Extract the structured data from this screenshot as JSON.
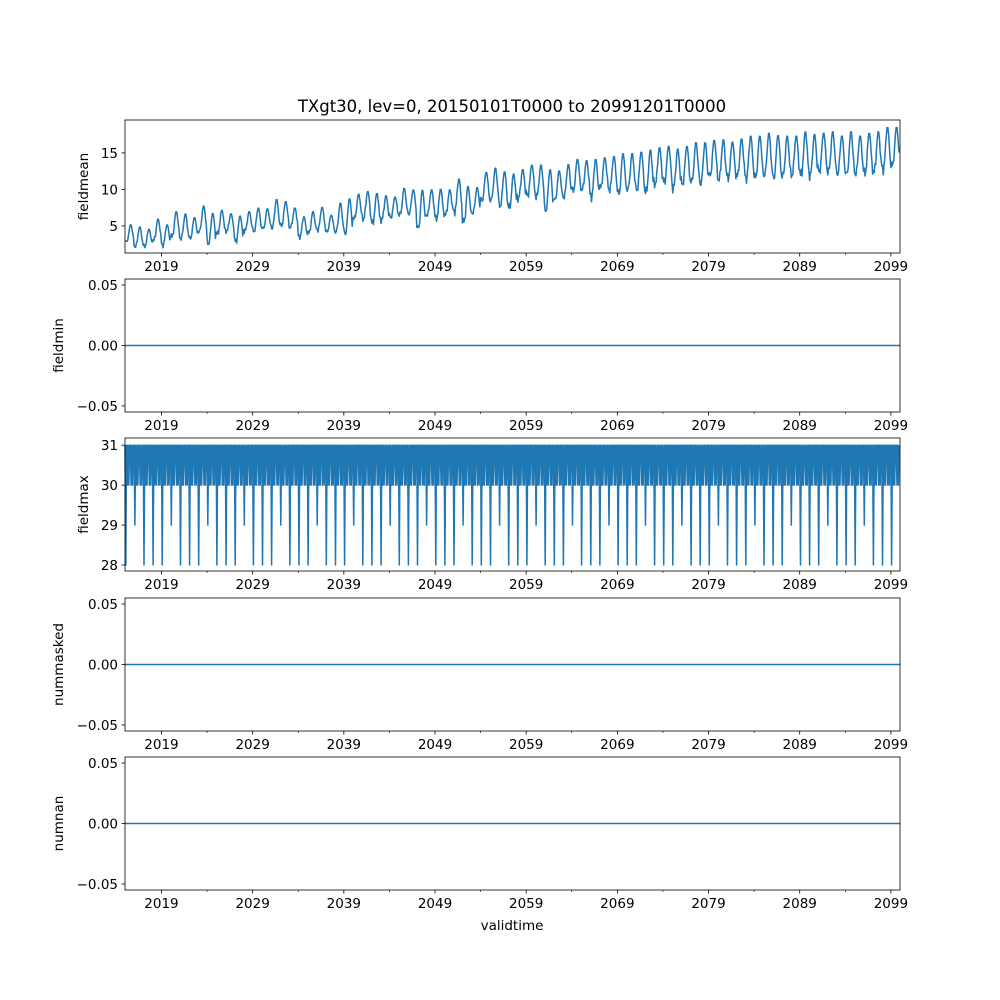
{
  "chart_data": {
    "type": "line",
    "title": "TXgt30, lev=0, 20150101T0000 to 20991201T0000",
    "xlabel": "validtime",
    "x_start": "2015-01",
    "x_end": "2099-12",
    "x_frequency": "monthly",
    "x_ticks": [
      "2019",
      "2029",
      "2039",
      "2049",
      "2059",
      "2069",
      "2079",
      "2089",
      "2099"
    ],
    "x_minor_ticks": [
      2024,
      2034,
      2044,
      2054,
      2064,
      2074,
      2084,
      2094
    ],
    "xlim": [
      2015.0,
      2100.0
    ],
    "series_color": "#1f77b4",
    "panels": [
      {
        "ylabel": "fieldmean",
        "ylim": [
          1.3,
          19.5
        ],
        "y_ticks": [
          {
            "v": 5,
            "label": "5"
          },
          {
            "v": 10,
            "label": "10"
          },
          {
            "v": 15,
            "label": "15"
          }
        ],
        "kind": "seasonal",
        "years": [
          2015,
          2099
        ],
        "annual_max": [
          5.2,
          4.9,
          4.6,
          6.0,
          5.2,
          7.0,
          6.7,
          6.2,
          7.8,
          6.8,
          7.2,
          6.7,
          6.4,
          7.0,
          7.5,
          7.4,
          8.7,
          8.4,
          7.5,
          6.3,
          7.0,
          7.6,
          6.5,
          8.2,
          8.8,
          9.4,
          9.8,
          9.5,
          9.2,
          9.0,
          10.2,
          10.0,
          10.0,
          10.0,
          10.1,
          10.0,
          11.5,
          10.5,
          10.3,
          12.4,
          13.0,
          12.5,
          12.2,
          12.8,
          13.4,
          13.4,
          12.8,
          12.6,
          13.5,
          14.2,
          14.0,
          14.2,
          14.4,
          14.6,
          15.0,
          15.0,
          15.2,
          15.5,
          15.8,
          16.0,
          15.6,
          16.0,
          16.5,
          16.5,
          16.8,
          16.9,
          16.6,
          17.0,
          17.4,
          17.4,
          17.8,
          17.5,
          17.4,
          17.4,
          18.0,
          17.6,
          17.8,
          18.0,
          17.4,
          18.0,
          17.4,
          17.8,
          18.0,
          18.6,
          18.6
        ],
        "annual_min": [
          2.8,
          2.2,
          2.2,
          3.0,
          2.4,
          3.5,
          3.3,
          3.3,
          4.2,
          2.6,
          3.9,
          4.3,
          2.9,
          4.3,
          4.3,
          4.6,
          4.8,
          5.0,
          4.8,
          3.5,
          4.0,
          4.5,
          4.2,
          4.2,
          4.0,
          6.0,
          6.0,
          5.4,
          5.8,
          6.2,
          6.5,
          6.7,
          4.6,
          6.5,
          6.0,
          6.5,
          7.0,
          5.5,
          6.8,
          8.5,
          8.5,
          7.8,
          7.5,
          8.8,
          9.2,
          9.0,
          7.2,
          8.5,
          9.0,
          9.8,
          10.0,
          9.0,
          10.2,
          10.0,
          9.4,
          10.0,
          10.0,
          9.6,
          10.8,
          11.0,
          10.2,
          10.8,
          11.0,
          10.9,
          11.8,
          11.4,
          11.6,
          11.8,
          11.6,
          11.6,
          12.0,
          11.6,
          11.8,
          12.0,
          12.0,
          12.0,
          12.5,
          12.4,
          12.2,
          12.0,
          12.2,
          12.2,
          12.4,
          12.8,
          13.2
        ]
      },
      {
        "ylabel": "fieldmin",
        "ylim": [
          -0.055,
          0.055
        ],
        "y_ticks": [
          {
            "v": -0.05,
            "label": "−0.05"
          },
          {
            "v": 0,
            "label": "0.00"
          },
          {
            "v": 0.05,
            "label": "0.05"
          }
        ],
        "kind": "constant",
        "value": 0
      },
      {
        "ylabel": "fieldmax",
        "ylim": [
          27.85,
          31.18
        ],
        "y_ticks": [
          {
            "v": 28,
            "label": "28"
          },
          {
            "v": 29,
            "label": "29"
          },
          {
            "v": 30,
            "label": "30"
          },
          {
            "v": 31,
            "label": "31"
          }
        ],
        "kind": "monthly_pattern",
        "non_leap": [
          31,
          28,
          31,
          30,
          31,
          30,
          31,
          31,
          30,
          31,
          30,
          31
        ],
        "leap": [
          31,
          29,
          31,
          30,
          31,
          30,
          31,
          31,
          30,
          31,
          30,
          31
        ]
      },
      {
        "ylabel": "nummasked",
        "ylim": [
          -0.055,
          0.055
        ],
        "y_ticks": [
          {
            "v": -0.05,
            "label": "−0.05"
          },
          {
            "v": 0,
            "label": "0.00"
          },
          {
            "v": 0.05,
            "label": "0.05"
          }
        ],
        "kind": "constant",
        "value": 0
      },
      {
        "ylabel": "numnan",
        "ylim": [
          -0.055,
          0.055
        ],
        "y_ticks": [
          {
            "v": -0.05,
            "label": "−0.05"
          },
          {
            "v": 0,
            "label": "0.00"
          },
          {
            "v": 0.05,
            "label": "0.05"
          }
        ],
        "kind": "constant",
        "value": 0
      }
    ]
  }
}
